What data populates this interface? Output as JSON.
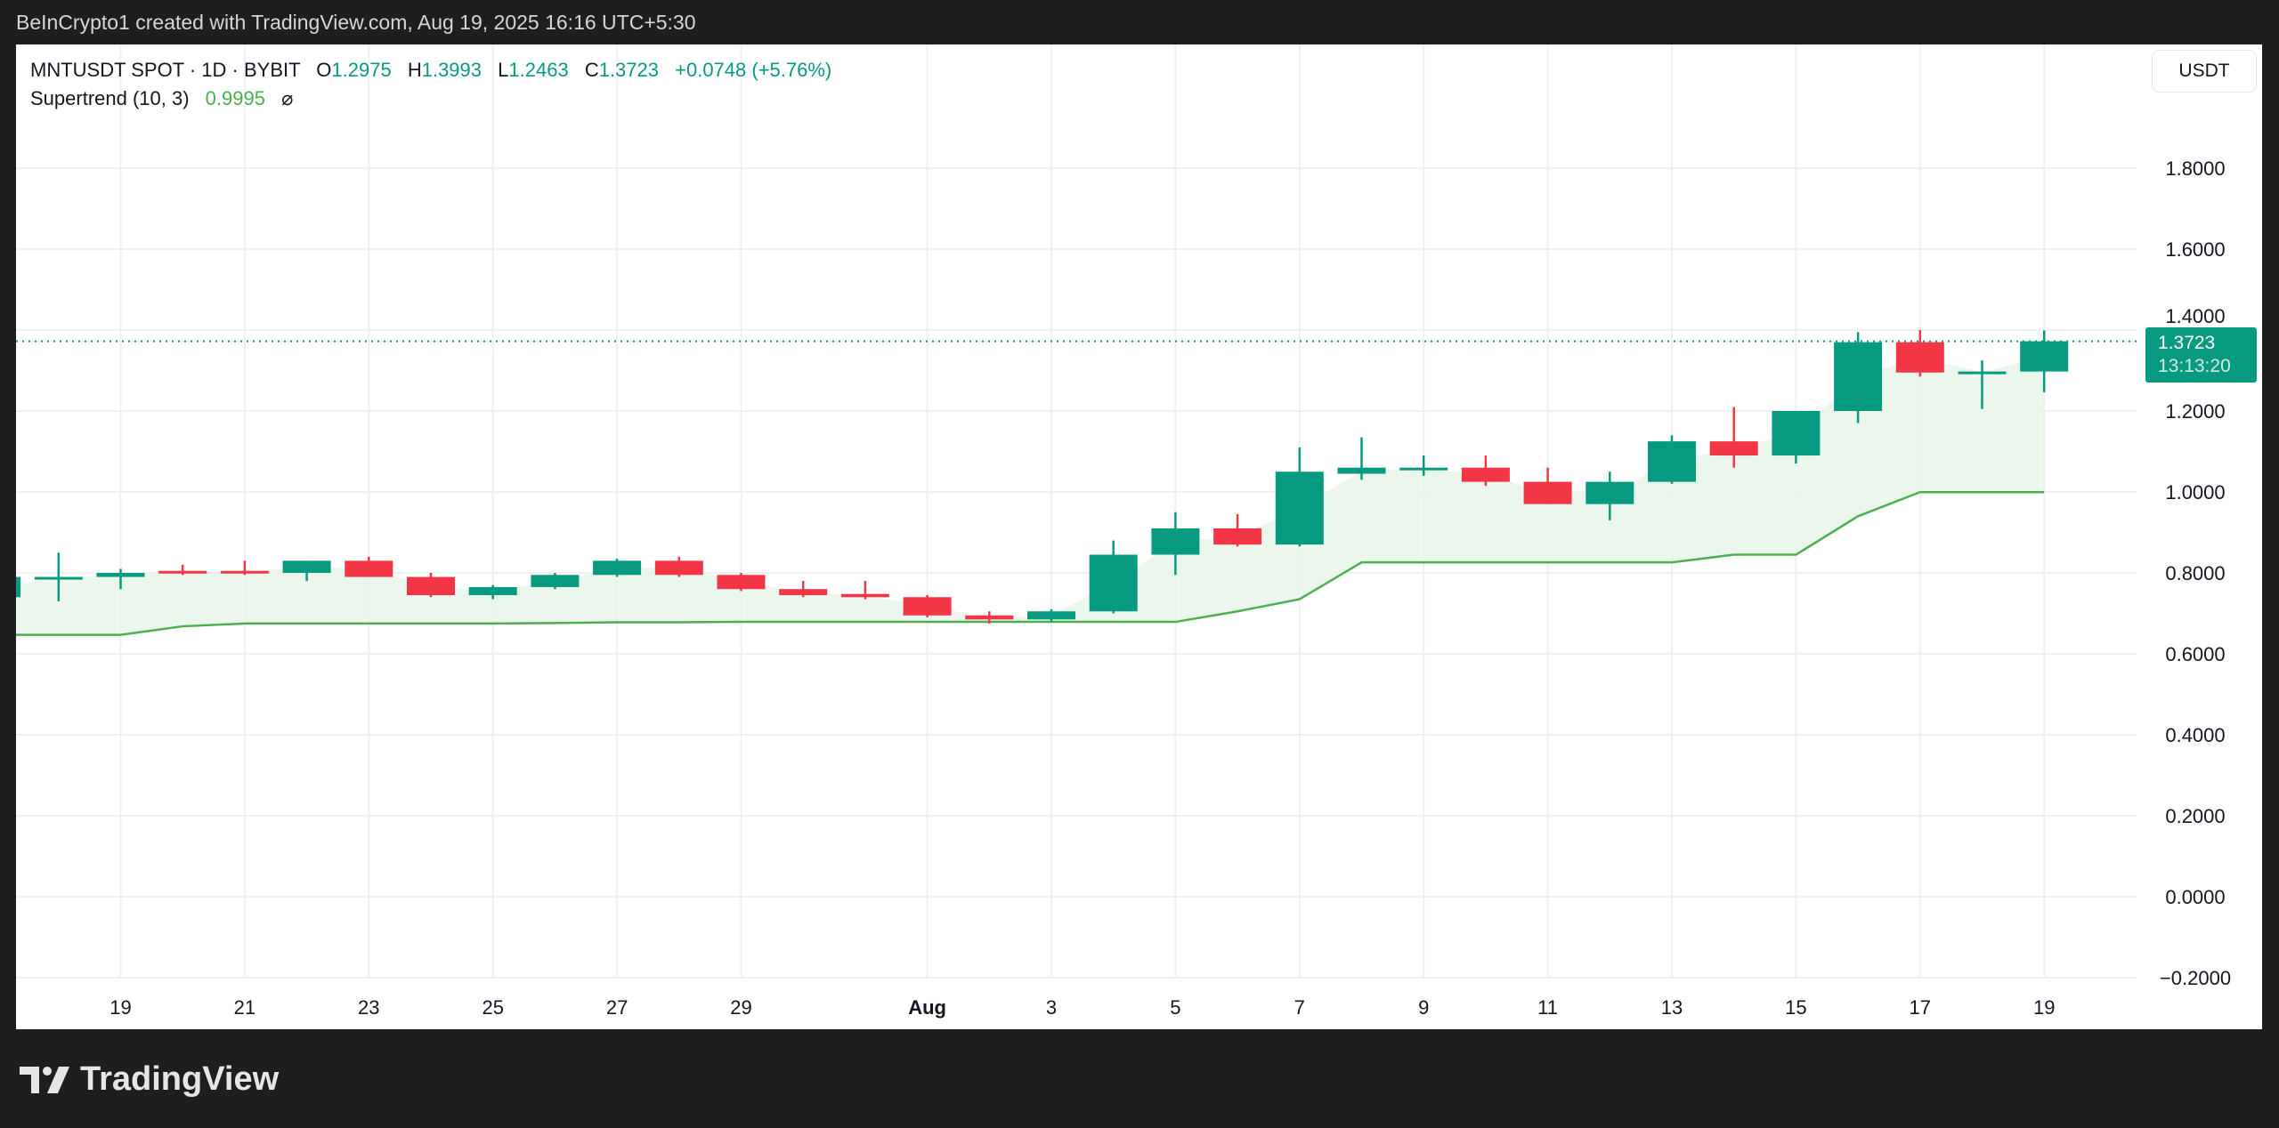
{
  "credit": "BeInCrypto1 created with TradingView.com, Aug 19, 2025 16:16 UTC+5:30",
  "legend": {
    "symbol": "MNTUSDT SPOT · 1D · BYBIT",
    "o_label": "O",
    "o": "1.2975",
    "h_label": "H",
    "h": "1.3993",
    "l_label": "L",
    "l": "1.2463",
    "c_label": "C",
    "c": "1.3723",
    "change": "+0.0748 (+5.76%)",
    "indicator": "Supertrend (10, 3)",
    "indicator_value": "0.9995",
    "indicator_icon": "visibility-off-icon"
  },
  "currency_button": "USDT",
  "price_tag": {
    "price": "1.3723",
    "countdown": "13:13:20"
  },
  "brand": "TradingView",
  "colors": {
    "up": "#089981",
    "down": "#f23645",
    "supertrend": "#4caf50",
    "fill": "#e8f5e9"
  },
  "chart_data": {
    "type": "candlestick",
    "ylim": [
      -0.2,
      1.8
    ],
    "y_ticks": [
      "1.8000",
      "1.6000",
      "1.4000",
      "1.2000",
      "1.0000",
      "0.8000",
      "0.6000",
      "0.4000",
      "0.2000",
      "0.0000",
      "−0.2000"
    ],
    "y_tick_values": [
      1.8,
      1.6,
      1.4,
      1.2,
      1.0,
      0.8,
      0.6,
      0.4,
      0.2,
      0.0,
      -0.2
    ],
    "x_ticks": [
      {
        "label": "19",
        "date": "2025-07-19"
      },
      {
        "label": "21",
        "date": "2025-07-21"
      },
      {
        "label": "23",
        "date": "2025-07-23"
      },
      {
        "label": "25",
        "date": "2025-07-25"
      },
      {
        "label": "27",
        "date": "2025-07-27"
      },
      {
        "label": "29",
        "date": "2025-07-29"
      },
      {
        "label": "Aug",
        "date": "2025-08-01"
      },
      {
        "label": "3",
        "date": "2025-08-03"
      },
      {
        "label": "5",
        "date": "2025-08-05"
      },
      {
        "label": "7",
        "date": "2025-08-07"
      },
      {
        "label": "9",
        "date": "2025-08-09"
      },
      {
        "label": "11",
        "date": "2025-08-11"
      },
      {
        "label": "13",
        "date": "2025-08-13"
      },
      {
        "label": "15",
        "date": "2025-08-15"
      },
      {
        "label": "17",
        "date": "2025-08-17"
      },
      {
        "label": "19",
        "date": "2025-08-19"
      }
    ],
    "last_price": 1.3723,
    "candles": [
      {
        "date": "2025-07-17",
        "o": 0.74,
        "h": 0.8,
        "l": 0.72,
        "c": 0.79,
        "st": 0.647
      },
      {
        "date": "2025-07-18",
        "o": 0.785,
        "h": 0.85,
        "l": 0.73,
        "c": 0.79,
        "st": 0.647
      },
      {
        "date": "2025-07-19",
        "o": 0.79,
        "h": 0.81,
        "l": 0.76,
        "c": 0.8,
        "st": 0.647
      },
      {
        "date": "2025-07-20",
        "o": 0.805,
        "h": 0.82,
        "l": 0.795,
        "c": 0.8,
        "st": 0.668
      },
      {
        "date": "2025-07-21",
        "o": 0.805,
        "h": 0.83,
        "l": 0.795,
        "c": 0.8,
        "st": 0.675
      },
      {
        "date": "2025-07-22",
        "o": 0.8,
        "h": 0.83,
        "l": 0.78,
        "c": 0.83,
        "st": 0.675
      },
      {
        "date": "2025-07-23",
        "o": 0.83,
        "h": 0.84,
        "l": 0.79,
        "c": 0.79,
        "st": 0.675
      },
      {
        "date": "2025-07-24",
        "o": 0.79,
        "h": 0.8,
        "l": 0.74,
        "c": 0.745,
        "st": 0.675
      },
      {
        "date": "2025-07-25",
        "o": 0.745,
        "h": 0.77,
        "l": 0.735,
        "c": 0.765,
        "st": 0.675
      },
      {
        "date": "2025-07-26",
        "o": 0.765,
        "h": 0.8,
        "l": 0.76,
        "c": 0.795,
        "st": 0.676
      },
      {
        "date": "2025-07-27",
        "o": 0.795,
        "h": 0.835,
        "l": 0.79,
        "c": 0.83,
        "st": 0.678
      },
      {
        "date": "2025-07-28",
        "o": 0.83,
        "h": 0.84,
        "l": 0.79,
        "c": 0.795,
        "st": 0.678
      },
      {
        "date": "2025-07-29",
        "o": 0.795,
        "h": 0.8,
        "l": 0.755,
        "c": 0.76,
        "st": 0.679
      },
      {
        "date": "2025-07-30",
        "o": 0.76,
        "h": 0.78,
        "l": 0.74,
        "c": 0.745,
        "st": 0.679
      },
      {
        "date": "2025-07-31",
        "o": 0.748,
        "h": 0.78,
        "l": 0.735,
        "c": 0.74,
        "st": 0.679
      },
      {
        "date": "2025-08-01",
        "o": 0.74,
        "h": 0.745,
        "l": 0.69,
        "c": 0.695,
        "st": 0.679
      },
      {
        "date": "2025-08-02",
        "o": 0.695,
        "h": 0.705,
        "l": 0.675,
        "c": 0.685,
        "st": 0.679
      },
      {
        "date": "2025-08-03",
        "o": 0.685,
        "h": 0.71,
        "l": 0.68,
        "c": 0.705,
        "st": 0.679
      },
      {
        "date": "2025-08-04",
        "o": 0.705,
        "h": 0.88,
        "l": 0.7,
        "c": 0.845,
        "st": 0.679
      },
      {
        "date": "2025-08-05",
        "o": 0.845,
        "h": 0.95,
        "l": 0.795,
        "c": 0.91,
        "st": 0.679
      },
      {
        "date": "2025-08-06",
        "o": 0.91,
        "h": 0.945,
        "l": 0.865,
        "c": 0.87,
        "st": 0.705
      },
      {
        "date": "2025-08-07",
        "o": 0.87,
        "h": 1.11,
        "l": 0.865,
        "c": 1.05,
        "st": 0.735
      },
      {
        "date": "2025-08-08",
        "o": 1.045,
        "h": 1.135,
        "l": 1.03,
        "c": 1.06,
        "st": 0.826
      },
      {
        "date": "2025-08-09",
        "o": 1.055,
        "h": 1.09,
        "l": 1.04,
        "c": 1.06,
        "st": 0.826
      },
      {
        "date": "2025-08-10",
        "o": 1.06,
        "h": 1.09,
        "l": 1.015,
        "c": 1.025,
        "st": 0.826
      },
      {
        "date": "2025-08-11",
        "o": 1.025,
        "h": 1.06,
        "l": 0.97,
        "c": 0.97,
        "st": 0.826
      },
      {
        "date": "2025-08-12",
        "o": 0.97,
        "h": 1.05,
        "l": 0.93,
        "c": 1.025,
        "st": 0.826
      },
      {
        "date": "2025-08-13",
        "o": 1.025,
        "h": 1.14,
        "l": 1.02,
        "c": 1.125,
        "st": 0.826
      },
      {
        "date": "2025-08-14",
        "o": 1.125,
        "h": 1.21,
        "l": 1.06,
        "c": 1.09,
        "st": 0.845
      },
      {
        "date": "2025-08-15",
        "o": 1.09,
        "h": 1.2,
        "l": 1.07,
        "c": 1.2,
        "st": 0.845
      },
      {
        "date": "2025-08-16",
        "o": 1.2,
        "h": 1.395,
        "l": 1.17,
        "c": 1.37,
        "st": 0.94
      },
      {
        "date": "2025-08-17",
        "o": 1.37,
        "h": 1.4,
        "l": 1.285,
        "c": 1.295,
        "st": 0.9995
      },
      {
        "date": "2025-08-18",
        "o": 1.295,
        "h": 1.325,
        "l": 1.205,
        "c": 1.2975,
        "st": 0.9995
      },
      {
        "date": "2025-08-19",
        "o": 1.2975,
        "h": 1.3993,
        "l": 1.2463,
        "c": 1.3723,
        "st": 0.9995
      }
    ]
  }
}
